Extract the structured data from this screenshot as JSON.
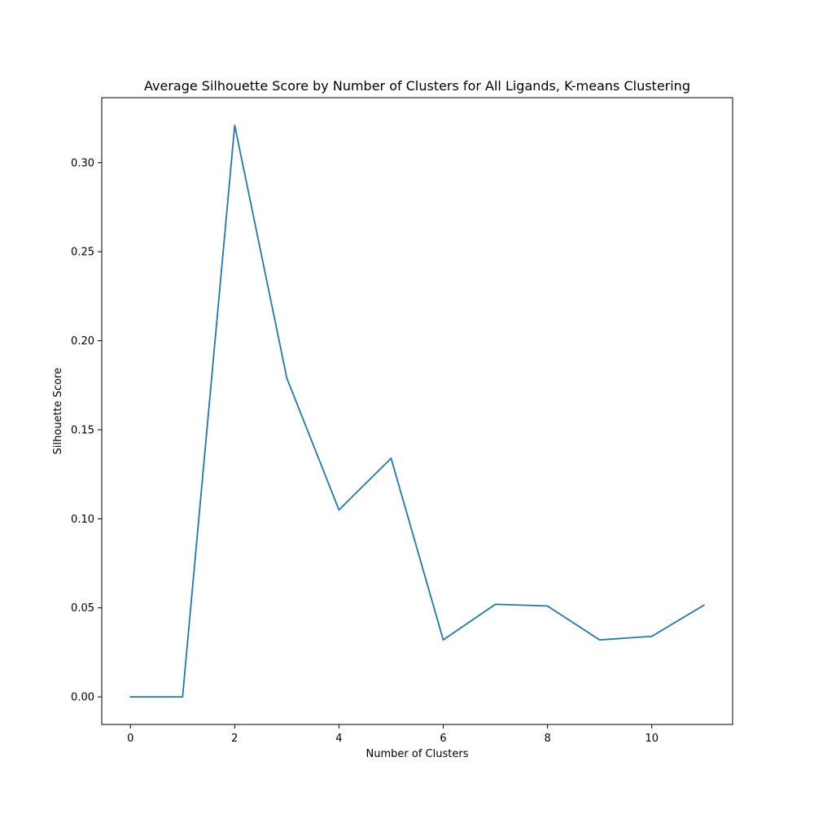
{
  "chart_data": {
    "type": "line",
    "title": "Average Silhouette Score by Number of Clusters for All Ligands, K-means Clustering",
    "xlabel": "Number of Clusters",
    "ylabel": "Silhouette Score",
    "xlim": [
      -0.55,
      11.55
    ],
    "ylim": [
      -0.0155,
      0.3365
    ],
    "xticks": [
      0,
      2,
      4,
      6,
      8,
      10
    ],
    "yticks": [
      0.0,
      0.05,
      0.1,
      0.15,
      0.2,
      0.25,
      0.3
    ],
    "xtick_labels": [
      "0",
      "2",
      "4",
      "6",
      "8",
      "10"
    ],
    "ytick_labels": [
      "0.00",
      "0.05",
      "0.10",
      "0.15",
      "0.20",
      "0.25",
      "0.30"
    ],
    "grid": false,
    "legend": "none",
    "series": [
      {
        "color": "#1f77b4",
        "x": [
          0,
          1,
          2,
          3,
          4,
          5,
          6,
          7,
          8,
          9,
          10,
          11
        ],
        "y": [
          0.0,
          0.0,
          0.321,
          0.179,
          0.105,
          0.134,
          0.032,
          0.052,
          0.051,
          0.032,
          0.034,
          0.0515
        ]
      }
    ]
  }
}
